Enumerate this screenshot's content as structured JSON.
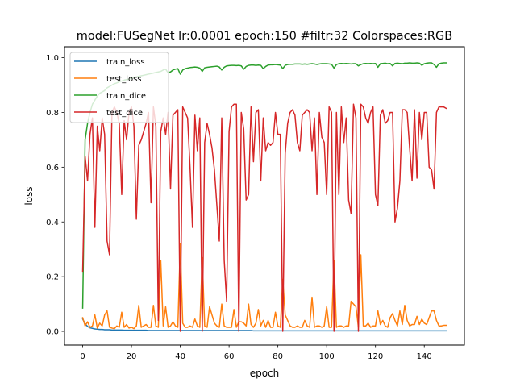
{
  "chart_data": {
    "type": "line",
    "title": "model:FUSegNet lr:0.0001 epoch:150 #filtr:32 Colorspaces:RGB",
    "xlabel": "epoch",
    "ylabel": "loss",
    "xlim": [
      -7.45,
      156.45
    ],
    "ylim": [
      -0.05,
      1.04
    ],
    "xticks": [
      0,
      20,
      40,
      60,
      80,
      100,
      120,
      140
    ],
    "yticks": [
      0.0,
      0.2,
      0.4,
      0.6,
      0.8,
      1.0
    ],
    "xtick_labels": [
      "0",
      "20",
      "40",
      "60",
      "80",
      "100",
      "120",
      "140"
    ],
    "ytick_labels": [
      "0.0",
      "0.2",
      "0.4",
      "0.6",
      "0.8",
      "1.0"
    ],
    "grid": false,
    "legend_position": "top-left",
    "x": [
      0,
      1,
      2,
      3,
      4,
      5,
      6,
      7,
      8,
      9,
      10,
      11,
      12,
      13,
      14,
      15,
      16,
      17,
      18,
      19,
      20,
      21,
      22,
      23,
      24,
      25,
      26,
      27,
      28,
      29,
      30,
      31,
      32,
      33,
      34,
      35,
      36,
      37,
      38,
      39,
      40,
      41,
      42,
      43,
      44,
      45,
      46,
      47,
      48,
      49,
      50,
      51,
      52,
      53,
      54,
      55,
      56,
      57,
      58,
      59,
      60,
      61,
      62,
      63,
      64,
      65,
      66,
      67,
      68,
      69,
      70,
      71,
      72,
      73,
      74,
      75,
      76,
      77,
      78,
      79,
      80,
      81,
      82,
      83,
      84,
      85,
      86,
      87,
      88,
      89,
      90,
      91,
      92,
      93,
      94,
      95,
      96,
      97,
      98,
      99,
      100,
      101,
      102,
      103,
      104,
      105,
      106,
      107,
      108,
      109,
      110,
      111,
      112,
      113,
      114,
      115,
      116,
      117,
      118,
      119,
      120,
      121,
      122,
      123,
      124,
      125,
      126,
      127,
      128,
      129,
      130,
      131,
      132,
      133,
      134,
      135,
      136,
      137,
      138,
      139,
      140,
      141,
      142,
      143,
      144,
      145,
      146,
      147,
      148,
      149
    ],
    "series": [
      {
        "name": "train_loss",
        "color": "#1f77b4",
        "values": [
          0.045,
          0.028,
          0.018,
          0.013,
          0.011,
          0.009,
          0.008,
          0.007,
          0.007,
          0.006,
          0.006,
          0.006,
          0.005,
          0.005,
          0.005,
          0.005,
          0.005,
          0.004,
          0.004,
          0.004,
          0.004,
          0.004,
          0.004,
          0.004,
          0.004,
          0.004,
          0.004,
          0.003,
          0.003,
          0.003,
          0.003,
          0.003,
          0.003,
          0.003,
          0.003,
          0.003,
          0.003,
          0.003,
          0.003,
          0.003,
          0.003,
          0.003,
          0.003,
          0.003,
          0.003,
          0.003,
          0.003,
          0.003,
          0.003,
          0.003,
          0.003,
          0.003,
          0.003,
          0.003,
          0.003,
          0.003,
          0.003,
          0.003,
          0.003,
          0.003,
          0.003,
          0.003,
          0.003,
          0.003,
          0.003,
          0.003,
          0.003,
          0.003,
          0.003,
          0.003,
          0.002,
          0.002,
          0.002,
          0.002,
          0.002,
          0.002,
          0.002,
          0.002,
          0.002,
          0.002,
          0.002,
          0.002,
          0.002,
          0.002,
          0.002,
          0.002,
          0.002,
          0.002,
          0.002,
          0.002,
          0.002,
          0.002,
          0.002,
          0.002,
          0.002,
          0.002,
          0.002,
          0.002,
          0.002,
          0.002,
          0.002,
          0.002,
          0.002,
          0.002,
          0.002,
          0.002,
          0.002,
          0.002,
          0.002,
          0.002,
          0.002,
          0.002,
          0.002,
          0.002,
          0.002,
          0.002,
          0.002,
          0.002,
          0.002,
          0.002,
          0.002,
          0.002,
          0.002,
          0.002,
          0.002,
          0.002,
          0.002,
          0.002,
          0.002,
          0.002,
          0.002,
          0.002,
          0.002,
          0.002,
          0.002,
          0.002,
          0.002,
          0.002,
          0.002,
          0.002,
          0.002,
          0.002,
          0.002,
          0.002,
          0.002,
          0.002,
          0.002,
          0.002,
          0.002,
          0.002
        ]
      },
      {
        "name": "test_loss",
        "color": "#ff7f0e",
        "values": [
          0.05,
          0.02,
          0.035,
          0.015,
          0.02,
          0.06,
          0.012,
          0.03,
          0.02,
          0.06,
          0.075,
          0.015,
          0.012,
          0.01,
          0.02,
          0.015,
          0.07,
          0.015,
          0.025,
          0.012,
          0.015,
          0.01,
          0.02,
          0.095,
          0.015,
          0.02,
          0.025,
          0.015,
          0.015,
          0.095,
          0.02,
          0.015,
          0.26,
          0.02,
          0.09,
          0.015,
          0.02,
          0.035,
          0.02,
          0.015,
          0.32,
          0.03,
          0.015,
          0.015,
          0.02,
          0.015,
          0.045,
          0.02,
          0.015,
          0.27,
          0.02,
          0.015,
          0.09,
          0.06,
          0.03,
          0.02,
          0.015,
          0.1,
          0.02,
          0.015,
          0.015,
          0.015,
          0.08,
          0.015,
          0.035,
          0.035,
          0.03,
          0.02,
          0.1,
          0.025,
          0.015,
          0.03,
          0.08,
          0.02,
          0.04,
          0.015,
          0.04,
          0.015,
          0.015,
          0.07,
          0.02,
          0.015,
          0.19,
          0.06,
          0.04,
          0.02,
          0.015,
          0.015,
          0.02,
          0.015,
          0.015,
          0.04,
          0.02,
          0.015,
          0.125,
          0.015,
          0.02,
          0.02,
          0.015,
          0.02,
          0.09,
          0.015,
          0.015,
          0.26,
          0.015,
          0.02,
          0.02,
          0.015,
          0.02,
          0.02,
          0.11,
          0.1,
          0.09,
          0.015,
          0.28,
          0.02,
          0.02,
          0.03,
          0.015,
          0.02,
          0.02,
          0.075,
          0.025,
          0.04,
          0.02,
          0.015,
          0.05,
          0.065,
          0.04,
          0.02,
          0.075,
          0.025,
          0.095,
          0.04,
          0.02,
          0.025,
          0.025,
          0.055,
          0.025,
          0.045,
          0.03,
          0.025,
          0.05,
          0.075,
          0.075,
          0.04,
          0.02,
          0.02,
          0.022,
          0.022
        ]
      },
      {
        "name": "train_dice",
        "color": "#2ca02c",
        "values": [
          0.085,
          0.7,
          0.76,
          0.8,
          0.83,
          0.845,
          0.86,
          0.87,
          0.875,
          0.88,
          0.89,
          0.895,
          0.9,
          0.905,
          0.908,
          0.912,
          0.915,
          0.918,
          0.92,
          0.922,
          0.925,
          0.928,
          0.93,
          0.932,
          0.934,
          0.936,
          0.938,
          0.94,
          0.942,
          0.944,
          0.946,
          0.948,
          0.95,
          0.955,
          0.958,
          0.945,
          0.948,
          0.955,
          0.958,
          0.96,
          0.94,
          0.955,
          0.96,
          0.962,
          0.964,
          0.965,
          0.966,
          0.965,
          0.962,
          0.95,
          0.963,
          0.965,
          0.966,
          0.967,
          0.968,
          0.969,
          0.966,
          0.955,
          0.965,
          0.97,
          0.971,
          0.972,
          0.972,
          0.971,
          0.972,
          0.97,
          0.958,
          0.968,
          0.972,
          0.973,
          0.973,
          0.972,
          0.973,
          0.972,
          0.96,
          0.968,
          0.973,
          0.974,
          0.974,
          0.975,
          0.974,
          0.973,
          0.96,
          0.972,
          0.975,
          0.976,
          0.976,
          0.977,
          0.977,
          0.977,
          0.976,
          0.977,
          0.976,
          0.977,
          0.978,
          0.977,
          0.975,
          0.977,
          0.978,
          0.978,
          0.978,
          0.977,
          0.976,
          0.962,
          0.975,
          0.978,
          0.979,
          0.978,
          0.979,
          0.978,
          0.977,
          0.978,
          0.978,
          0.97,
          0.975,
          0.978,
          0.979,
          0.978,
          0.979,
          0.978,
          0.979,
          0.965,
          0.978,
          0.979,
          0.98,
          0.978,
          0.979,
          0.97,
          0.979,
          0.98,
          0.979,
          0.978,
          0.98,
          0.98,
          0.981,
          0.98,
          0.98,
          0.981,
          0.98,
          0.972,
          0.978,
          0.98,
          0.981,
          0.981,
          0.975,
          0.965,
          0.978,
          0.98,
          0.981,
          0.981
        ]
      },
      {
        "name": "test_dice",
        "color": "#d62728",
        "values": [
          0.22,
          0.64,
          0.55,
          0.72,
          0.78,
          0.38,
          0.75,
          0.66,
          0.78,
          0.72,
          0.33,
          0.28,
          0.8,
          0.82,
          0.8,
          0.76,
          0.5,
          0.77,
          0.7,
          0.8,
          0.82,
          0.75,
          0.41,
          0.68,
          0.7,
          0.73,
          0.76,
          0.8,
          0.47,
          0.82,
          0.75,
          0.04,
          0.73,
          0.78,
          0.72,
          0.8,
          0.52,
          0.79,
          0.8,
          0.81,
          0.0,
          0.82,
          0.8,
          0.78,
          0.6,
          0.38,
          0.79,
          0.66,
          0.78,
          0.0,
          0.69,
          0.76,
          0.72,
          0.67,
          0.59,
          0.46,
          0.33,
          0.78,
          0.26,
          0.11,
          0.73,
          0.82,
          0.83,
          0.83,
          0.0,
          0.8,
          0.74,
          0.48,
          0.5,
          0.82,
          0.62,
          0.8,
          0.81,
          0.55,
          0.78,
          0.66,
          0.69,
          0.68,
          0.69,
          0.8,
          0.72,
          0.72,
          0.0,
          0.65,
          0.76,
          0.8,
          0.81,
          0.79,
          0.69,
          0.66,
          0.79,
          0.8,
          0.81,
          0.8,
          0.66,
          0.78,
          0.5,
          0.8,
          0.71,
          0.69,
          0.5,
          0.82,
          0.8,
          0.0,
          0.8,
          0.5,
          0.82,
          0.69,
          0.78,
          0.48,
          0.43,
          0.83,
          0.78,
          0.0,
          0.83,
          0.82,
          0.78,
          0.76,
          0.8,
          0.82,
          0.5,
          0.46,
          0.79,
          0.81,
          0.76,
          0.77,
          0.8,
          0.8,
          0.4,
          0.45,
          0.55,
          0.81,
          0.81,
          0.8,
          0.67,
          0.55,
          0.81,
          0.56,
          0.8,
          0.7,
          0.8,
          0.8,
          0.6,
          0.59,
          0.52,
          0.8,
          0.82,
          0.82,
          0.82,
          0.815
        ]
      }
    ]
  }
}
